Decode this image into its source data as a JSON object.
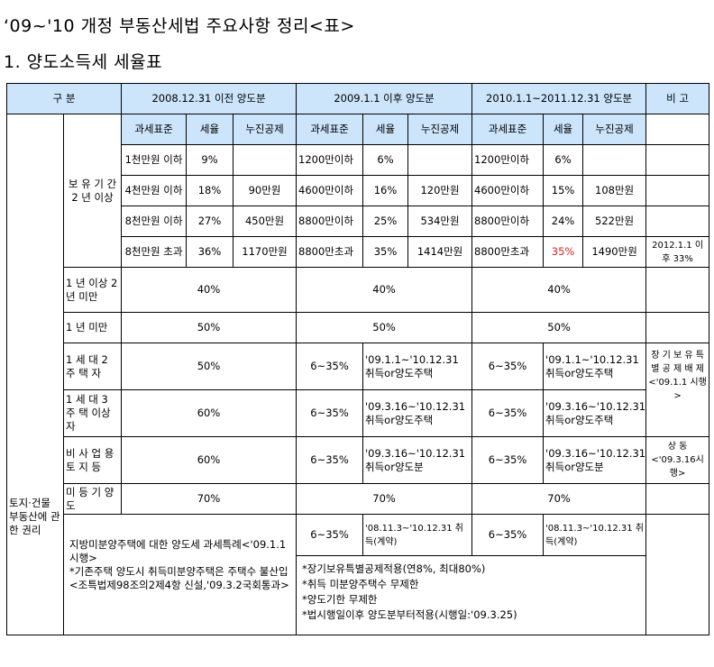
{
  "title": "‘09~'10 개정 부동산세법 주요사항 정리<표>",
  "subtitle": "1. 양도소득세 세율표",
  "headers": {
    "category": "구 분",
    "period1": "2008.12.31 이전 양도분",
    "period2": "2009.1.1 이후 양도분",
    "period3": "2010.1.1~2011.12.31 양도분",
    "remarks": "비 고"
  },
  "sub_headers": {
    "base": "과세표준",
    "rate": "세율",
    "deduction": "누진공제"
  },
  "row_groups": {
    "land": "토지·건물 부동산에 관한 권리",
    "over2y": "보 유 기 간 2 년 이상"
  },
  "progressive_rows": [
    {
      "p1": [
        "1천만원 이하",
        "9%",
        ""
      ],
      "p2": [
        "1200만이하",
        "6%",
        ""
      ],
      "p3": [
        "1200만이하",
        "6%",
        ""
      ],
      "note": ""
    },
    {
      "p1": [
        "4천만원 이하",
        "18%",
        "90만원"
      ],
      "p2": [
        "4600만이하",
        "16%",
        "120만원"
      ],
      "p3": [
        "4600만이하",
        "15%",
        "108만원"
      ],
      "note": ""
    },
    {
      "p1": [
        "8천만원 이하",
        "27%",
        "450만원"
      ],
      "p2": [
        "8800만이하",
        "25%",
        "534만원"
      ],
      "p3": [
        "8800만이하",
        "24%",
        "522만원"
      ],
      "note": ""
    },
    {
      "p1": [
        "8천만원 초과",
        "36%",
        "1170만원"
      ],
      "p2": [
        "8800만초과",
        "35%",
        "1414만원"
      ],
      "p3": [
        "8800만초과",
        "35%",
        "1490만원"
      ],
      "note": "2012.1.1 이후 33%"
    }
  ],
  "flat_rows": [
    {
      "label": "1 년 이상 2 년 미만",
      "p1": "40%",
      "p2": "40%",
      "p3": "40%"
    },
    {
      "label": "1 년 미만",
      "p1": "50%",
      "p2": "50%",
      "p3": "50%"
    }
  ],
  "multi_rows": [
    {
      "label": "1 세 대 2 주 택 자",
      "p1": "50%",
      "p2_rate": "6~35%",
      "p2_note": "'09.1.1~'10.12.31 취득or양도주택",
      "p3_rate": "6~35%",
      "p3_note": "'09.1.1~'10.12.31 취득or양도주택"
    },
    {
      "label": "1 세 대 3 주 택 이상자",
      "p1": "60%",
      "p2_rate": "6~35%",
      "p2_note": "'09.3.16~'10.12.31 취득or양도주택",
      "p3_rate": "6~35%",
      "p3_note": "'09.3.16~'10.12.31 취득or양도주택"
    },
    {
      "label": "비 사 업 용 토 지 등",
      "p1": "60%",
      "p2_rate": "6~35%",
      "p2_note": "'09.3.16~'10.12.31 취득or양도분",
      "p3_rate": "6~35%",
      "p3_note": "'09.3.16~'10.12.31 취득or양도분"
    }
  ],
  "remark_multi1": "장 기 보 유 특 별 공 제 배 제 <'09.1.1 시행>",
  "remark_multi2": "상 동 <'09.3.16시행>",
  "unregistered": {
    "label": "미 등 기 양도",
    "p1": "70%",
    "p2": "70%",
    "p3": "70%"
  },
  "special": {
    "left_title": "지방미분양주택에 대한 양도세 과세특례<'09.1.1 시행>",
    "left_note": "*기존주택 양도시 취득미분양주택은 주택수 불산입<조특법제98조의2제4항 신설,'09.3.2국회통과>",
    "p2_rate": "6~35%",
    "p2_note": "'08.11.3~'10.12.31 취득(계약)",
    "p3_rate": "6~35%",
    "p3_note": "'08.11.3~'10.12.31 취득(계약)",
    "bullets": [
      "*장기보유특별공제적용(연8%, 최대80%)",
      "*취득 미분양주택수 무제한",
      "*양도기한 무제한",
      "*법시행일이후 양도분부터적용(시행일:'09.3.25)"
    ]
  }
}
